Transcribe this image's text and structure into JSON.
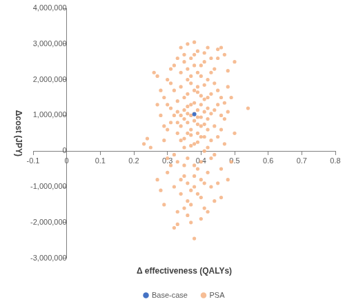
{
  "chart_data": {
    "type": "scatter",
    "x_label": "Δ effectiveness (QALYs)",
    "y_label": "Δcost (JPY)",
    "xlim": [
      -0.1,
      0.8
    ],
    "xticks": [
      -0.1,
      0,
      0.1,
      0.2,
      0.3,
      0.4,
      0.5,
      0.6,
      0.7,
      0.8
    ],
    "ylim": [
      -3000000,
      4000000
    ],
    "yticks": [
      {
        "value": -3000000,
        "label": "-3,000,000"
      },
      {
        "value": -2000000,
        "label": "-2,000,000"
      },
      {
        "value": -1000000,
        "label": "-1,000,000"
      },
      0,
      {
        "value": 1000000,
        "label": "1,000,000"
      },
      {
        "value": 2000000,
        "label": "2,000,000"
      },
      {
        "value": 3000000,
        "label": "3,000,000"
      },
      {
        "value": 4000000,
        "label": "4,000,000"
      }
    ],
    "grid": false,
    "legend": "bottom",
    "series": [
      {
        "name": "PSA",
        "color": "#f4b183",
        "marker": "circle",
        "x": [
          0.38,
          0.36,
          0.4,
          0.35,
          0.42,
          0.37,
          0.39,
          0.33,
          0.41,
          0.36,
          0.34,
          0.43,
          0.38,
          0.4,
          0.32,
          0.39,
          0.44,
          0.35,
          0.37,
          0.41,
          0.3,
          0.46,
          0.38,
          0.36,
          0.42,
          0.33,
          0.4,
          0.39,
          0.34,
          0.45,
          0.31,
          0.37,
          0.43,
          0.35,
          0.41,
          0.29,
          0.47,
          0.38,
          0.36,
          0.4,
          0.32,
          0.44,
          0.3,
          0.39,
          0.42,
          0.34,
          0.46,
          0.37,
          0.33,
          0.41,
          0.28,
          0.48,
          0.35,
          0.43,
          0.31,
          0.4,
          0.45,
          0.36,
          0.29,
          0.47,
          0.38,
          0.36,
          0.42,
          0.45,
          0.46,
          0.5,
          0.54,
          0.26,
          0.27,
          0.24,
          0.23,
          0.38,
          0.32,
          0.33,
          0.27,
          0.25,
          0.48,
          0.5,
          0.28,
          0.49,
          0.39,
          0.37,
          0.4,
          0.38,
          0.36,
          0.41,
          0.35,
          0.39,
          0.37,
          0.42,
          0.34,
          0.4,
          0.38,
          0.36,
          0.43,
          0.33,
          0.39,
          0.41,
          0.37,
          0.35,
          0.44,
          0.32,
          0.38,
          0.4,
          0.36,
          0.42,
          0.34,
          0.45,
          0.31,
          0.39,
          0.46,
          0.3,
          0.37,
          0.41,
          0.35,
          0.43,
          0.33,
          0.4,
          0.38,
          0.36,
          0.47,
          0.31,
          0.44,
          0.34,
          0.42,
          0.39,
          0.37,
          0.45,
          0.32,
          0.41,
          0.48,
          0.29,
          0.36,
          0.43,
          0.35,
          0.4,
          0.33,
          0.46,
          0.38,
          0.3,
          0.44,
          0.39,
          0.37,
          0.42,
          0.35,
          0.41,
          0.34,
          0.43,
          0.31,
          0.47,
          0.36,
          0.4,
          0.38,
          0.34,
          0.42,
          0.37,
          0.39,
          0.35,
          0.41,
          0.33,
          0.45,
          0.3,
          0.46,
          0.32,
          0.44,
          0.28,
          0.49,
          0.27,
          0.48,
          0.29
        ],
        "values": [
          1050000,
          800000,
          1300000,
          1500000,
          900000,
          600000,
          1800000,
          1100000,
          400000,
          1250000,
          700000,
          1600000,
          200000,
          2100000,
          1700000,
          950000,
          1150000,
          350000,
          1900000,
          1450000,
          1300000,
          1000000,
          2400000,
          -200000,
          2000000,
          500000,
          700000,
          -500000,
          2200000,
          1700000,
          800000,
          2600000,
          300000,
          -700000,
          2500000,
          1500000,
          1350000,
          -1000000,
          2300000,
          -300000,
          -100000,
          2300000,
          2000000,
          2800000,
          -600000,
          -1200000,
          600000,
          -1500000,
          2600000,
          -900000,
          1000000,
          1800000,
          2700000,
          -200000,
          -400000,
          -1300000,
          2600000,
          -1800000,
          300000,
          200000,
          3050000,
          3000000,
          2900000,
          2850000,
          2900000,
          2500000,
          1200000,
          2200000,
          2100000,
          350000,
          200000,
          -2450000,
          -2150000,
          -2050000,
          -800000,
          100000,
          2250000,
          500000,
          -1100000,
          -300000,
          1150000,
          1000000,
          950000,
          1350000,
          1050000,
          1100000,
          900000,
          750000,
          1300000,
          1200000,
          1000000,
          1550000,
          850000,
          1600000,
          1050000,
          1400000,
          1650000,
          750000,
          450000,
          1150000,
          700000,
          1000000,
          1700000,
          400000,
          500000,
          1500000,
          1800000,
          1300000,
          1200000,
          250000,
          1500000,
          600000,
          2100000,
          1850000,
          100000,
          2200000,
          -300000,
          2400000,
          -700000,
          2000000,
          900000,
          1900000,
          -100000,
          -800000,
          100000,
          2200000,
          -1100000,
          400000,
          2400000,
          -1600000,
          1100000,
          700000,
          -1400000,
          -1000000,
          2500000,
          -1900000,
          -1700000,
          -500000,
          2700000,
          -600000,
          -1400000,
          -1200000,
          -2000000,
          -1700000,
          -1600000,
          2750000,
          2900000,
          2600000,
          2300000,
          2700000,
          -900000,
          -800000,
          -400000,
          300000,
          600000,
          150000,
          500000,
          -400000,
          0,
          800000,
          -900000,
          -200000,
          -1300000,
          -1000000,
          1900000,
          1700000,
          1500000,
          1300000,
          -800000,
          -1500000
        ]
      },
      {
        "name": "Base-case",
        "color": "#4472c4",
        "marker": "circle",
        "x": [
          0.38
        ],
        "values": [
          1030000
        ]
      }
    ]
  }
}
